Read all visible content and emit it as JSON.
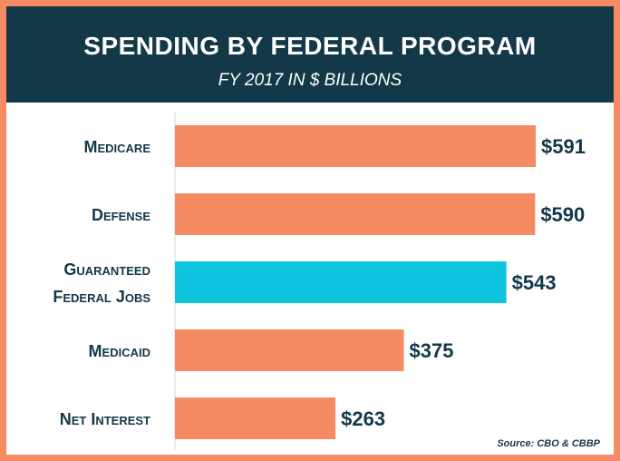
{
  "header": {
    "title": "SPENDING BY FEDERAL PROGRAM",
    "subtitle": "FY 2017 IN $ BILLIONS"
  },
  "source": "Source: CBO & CBBP",
  "colors": {
    "frame": "#f58a63",
    "header_bg": "#133848",
    "bar_default": "#f58a63",
    "bar_highlight": "#0ec4de",
    "text_dark": "#133848",
    "axis_line": "#d8d8d8"
  },
  "chart_data": {
    "type": "bar",
    "orientation": "horizontal",
    "title": "SPENDING BY FEDERAL PROGRAM",
    "subtitle": "FY 2017 IN $ BILLIONS",
    "categories": [
      "Medicare",
      "Defense",
      "Guaranteed Federal Jobs",
      "Medicaid",
      "Net Interest"
    ],
    "category_lines": [
      [
        "Medicare"
      ],
      [
        "Defense"
      ],
      [
        "Guaranteed",
        "Federal Jobs"
      ],
      [
        "Medicaid"
      ],
      [
        "Net Interest"
      ]
    ],
    "values": [
      591,
      590,
      543,
      375,
      263
    ],
    "value_labels": [
      "$591",
      "$590",
      "$543",
      "$375",
      "$263"
    ],
    "highlight": [
      false,
      false,
      true,
      false,
      false
    ],
    "xlim": [
      0,
      591
    ],
    "grid": false,
    "legend": "none"
  }
}
